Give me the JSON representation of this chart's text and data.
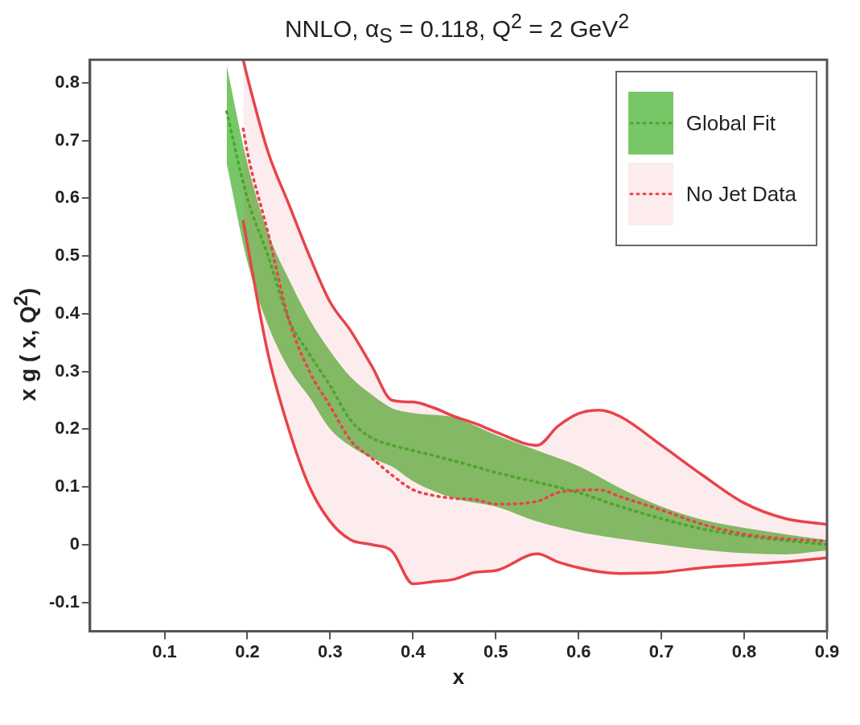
{
  "chart_data": {
    "type": "line",
    "title": "NNLO, α$_{S}$ = 0.118, Q$^{2}$ = 2 GeV$^{2}$",
    "xlabel": "x",
    "ylabel": "x g ( x, Q$^{2}$)",
    "xlim": [
      0.01,
      0.9
    ],
    "ylim": [
      -0.15,
      0.84
    ],
    "xticks": [
      0.1,
      0.2,
      0.3,
      0.4,
      0.5,
      0.6,
      0.7,
      0.8,
      0.9
    ],
    "yticks": [
      -0.1,
      0,
      0.1,
      0.2,
      0.3,
      0.4,
      0.5,
      0.6,
      0.7,
      0.8
    ],
    "grid": false,
    "legend": "top right",
    "line_style": "dotted",
    "marker": "none",
    "series": [
      {
        "color": "#e8434a",
        "line_style": "solid",
        "x": [
          0.195,
          0.2,
          0.225,
          0.25,
          0.275,
          0.3,
          0.325,
          0.35,
          0.375,
          0.4,
          0.425,
          0.45,
          0.475,
          0.5,
          0.55,
          0.575,
          0.6,
          0.625,
          0.65,
          0.7,
          0.75,
          0.8,
          0.85,
          0.9
        ],
        "values": [
          0.84,
          0.81,
          0.68,
          0.59,
          0.5,
          0.42,
          0.37,
          0.31,
          0.25,
          0.247,
          0.237,
          0.222,
          0.21,
          0.195,
          0.172,
          0.205,
          0.227,
          0.233,
          0.222,
          0.172,
          0.12,
          0.072,
          0.045,
          0.035
        ]
      },
      {
        "color": "#e8434a",
        "line_style": "solid",
        "x": [
          0.195,
          0.2,
          0.225,
          0.25,
          0.275,
          0.3,
          0.325,
          0.35,
          0.375,
          0.4,
          0.425,
          0.45,
          0.475,
          0.5,
          0.55,
          0.575,
          0.6,
          0.625,
          0.65,
          0.7,
          0.75,
          0.8,
          0.85,
          0.9
        ],
        "values": [
          0.56,
          0.52,
          0.33,
          0.2,
          0.1,
          0.04,
          0.008,
          0.0,
          -0.012,
          -0.068,
          -0.064,
          -0.06,
          -0.048,
          -0.045,
          -0.016,
          -0.03,
          -0.04,
          -0.047,
          -0.05,
          -0.048,
          -0.04,
          -0.035,
          -0.03,
          -0.023
        ]
      },
      {
        "name": "No Jet Data",
        "color": "#e8434a",
        "x": [
          0.195,
          0.2,
          0.225,
          0.25,
          0.275,
          0.3,
          0.325,
          0.35,
          0.375,
          0.4,
          0.425,
          0.45,
          0.475,
          0.5,
          0.55,
          0.575,
          0.6,
          0.625,
          0.65,
          0.7,
          0.75,
          0.8,
          0.85,
          0.9
        ],
        "values": [
          0.72,
          0.68,
          0.54,
          0.39,
          0.3,
          0.24,
          0.18,
          0.15,
          0.12,
          0.095,
          0.085,
          0.08,
          0.078,
          0.07,
          0.075,
          0.09,
          0.094,
          0.095,
          0.083,
          0.06,
          0.035,
          0.018,
          0.01,
          0.006
        ],
        "lower": [
          0.56,
          0.52,
          0.33,
          0.2,
          0.1,
          0.04,
          0.008,
          0.0,
          -0.012,
          -0.068,
          -0.064,
          -0.06,
          -0.048,
          -0.045,
          -0.016,
          -0.03,
          -0.04,
          -0.047,
          -0.05,
          -0.048,
          -0.04,
          -0.035,
          -0.03,
          -0.023
        ],
        "upper": [
          0.84,
          0.81,
          0.68,
          0.59,
          0.5,
          0.42,
          0.37,
          0.31,
          0.25,
          0.247,
          0.237,
          0.222,
          0.21,
          0.195,
          0.172,
          0.205,
          0.227,
          0.233,
          0.222,
          0.172,
          0.12,
          0.072,
          0.045,
          0.035
        ]
      },
      {
        "name": "Global Fit",
        "color": "#3fae28",
        "x": [
          0.175,
          0.2,
          0.225,
          0.25,
          0.275,
          0.3,
          0.325,
          0.35,
          0.375,
          0.4,
          0.45,
          0.5,
          0.55,
          0.6,
          0.65,
          0.7,
          0.75,
          0.8,
          0.85,
          0.9
        ],
        "values": [
          0.75,
          0.6,
          0.5,
          0.39,
          0.33,
          0.275,
          0.215,
          0.185,
          0.172,
          0.163,
          0.145,
          0.125,
          0.108,
          0.09,
          0.066,
          0.045,
          0.027,
          0.015,
          0.007,
          0.0
        ],
        "lower": [
          0.66,
          0.49,
          0.38,
          0.305,
          0.255,
          0.2,
          0.17,
          0.15,
          0.135,
          0.11,
          0.08,
          0.066,
          0.04,
          0.022,
          0.01,
          0.0,
          -0.009,
          -0.015,
          -0.017,
          -0.01
        ],
        "upper": [
          0.83,
          0.66,
          0.54,
          0.46,
          0.39,
          0.335,
          0.29,
          0.26,
          0.236,
          0.228,
          0.22,
          0.19,
          0.163,
          0.136,
          0.098,
          0.066,
          0.043,
          0.029,
          0.018,
          0.008
        ]
      }
    ]
  }
}
